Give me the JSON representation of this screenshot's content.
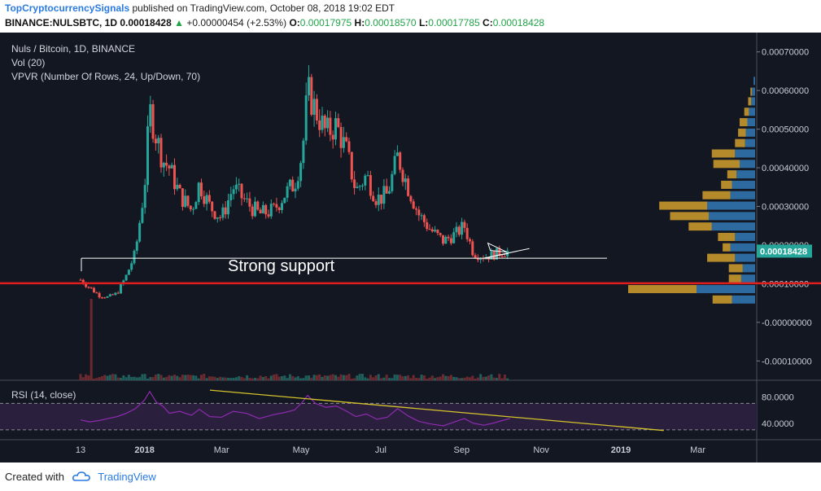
{
  "header": {
    "author": "TopCryptocurrencySignals",
    "published": "published on TradingView.com, October 08, 2018 19:02 EDT",
    "symbol": "BINANCE:NULSBTC, 1D",
    "price": "0.00018428",
    "change": "+0.00000454 (+2.53%)",
    "o_label": "O:",
    "o_value": "0.00017975",
    "h_label": "H:",
    "h_value": "0.00018570",
    "l_label": "L:",
    "l_value": "0.00017785",
    "c_label": "C:",
    "c_value": "0.00018428"
  },
  "legend": {
    "title": "Nuls / Bitcoin, 1D, BINANCE",
    "vol": "Vol (20)",
    "vpvr": "VPVR (Number Of Rows, 24, Up/Down, 70)",
    "rsi": "RSI (14, close)"
  },
  "annotation": "Strong support",
  "footer": {
    "created": "Created with",
    "brand": "TradingView"
  },
  "colors": {
    "background": "#131722",
    "up": "#26a69a",
    "down": "#ef5350",
    "support_line": "#ffffff",
    "red_line": "#e01e1e",
    "rsi_line": "#8e2bb0",
    "rsi_trend": "#d4c22c",
    "vpvr_up": "#2c6aa0",
    "vpvr_down": "#b58a2a",
    "last_price_label": "#26a69a"
  },
  "chart_data": {
    "type": "candlestick",
    "symbol": "NULSBTC",
    "timeframe": "1D",
    "ylim": [
      -0.00015,
      0.00075
    ],
    "x_ticks": [
      "13",
      "2018",
      "Mar",
      "May",
      "Jul",
      "Sep",
      "Nov",
      "2019",
      "Mar"
    ],
    "y_ticks": [
      "0.00070000",
      "0.00060000",
      "0.00050000",
      "0.00040000",
      "0.00030000",
      "0.00020000",
      "0.00010000",
      "-0.00000000",
      "-0.00010000"
    ],
    "last_price": "0.00018428",
    "price_path": {
      "dates": [
        "2017-11-13",
        "2017-11-20",
        "2017-11-27",
        "2017-12-04",
        "2017-12-11",
        "2017-12-18",
        "2017-12-25",
        "2018-01-01",
        "2018-01-05",
        "2018-01-10",
        "2018-01-15",
        "2018-01-20",
        "2018-01-28",
        "2018-02-06",
        "2018-02-12",
        "2018-02-20",
        "2018-03-01",
        "2018-03-10",
        "2018-03-20",
        "2018-03-30",
        "2018-04-10",
        "2018-04-18",
        "2018-04-26",
        "2018-05-02",
        "2018-05-06",
        "2018-05-12",
        "2018-05-20",
        "2018-05-28",
        "2018-06-05",
        "2018-06-12",
        "2018-06-20",
        "2018-06-28",
        "2018-07-06",
        "2018-07-14",
        "2018-07-22",
        "2018-07-30",
        "2018-08-08",
        "2018-08-18",
        "2018-08-28",
        "2018-09-03",
        "2018-09-10",
        "2018-09-18",
        "2018-09-25",
        "2018-10-02",
        "2018-10-08"
      ],
      "close": [
        0.00011,
        9e-05,
        7e-05,
        6.5e-05,
        7.5e-05,
        0.00012,
        0.00018,
        0.00035,
        0.00055,
        0.00048,
        0.00042,
        0.0004,
        0.00033,
        0.00029,
        0.00036,
        0.0003,
        0.00027,
        0.00035,
        0.00031,
        0.00028,
        0.00029,
        0.00033,
        0.00036,
        0.00044,
        0.0006,
        0.00055,
        0.00049,
        0.00051,
        0.00044,
        0.00034,
        0.00038,
        0.00032,
        0.00033,
        0.00043,
        0.00035,
        0.00028,
        0.00024,
        0.00021,
        0.00023,
        0.00025,
        0.00018,
        0.00017,
        0.000175,
        0.000182,
        0.00018428
      ]
    },
    "vpvr": {
      "price_levels": [
        0.000625,
        0.000597,
        0.000572,
        0.000545,
        0.000518,
        0.000491,
        0.000464,
        0.000437,
        0.00041,
        0.000383,
        0.000356,
        0.000329,
        0.000302,
        0.000275,
        0.000248,
        0.000221,
        0.000194,
        0.000167,
        0.00014,
        0.000113,
        8.6e-05,
        5.9e-05
      ],
      "up_volume": [
        0.2,
        0.4,
        0.5,
        0.8,
        1.0,
        1.2,
        1.3,
        2.6,
        2.0,
        2.4,
        3.0,
        3.2,
        6.2,
        6.0,
        5.6,
        2.6,
        3.2,
        2.6,
        1.6,
        1.8,
        9.5,
        3.0
      ],
      "down_volume": [
        0.0,
        0.2,
        0.4,
        0.6,
        1.0,
        1.0,
        1.3,
        3.0,
        3.4,
        1.2,
        1.4,
        3.6,
        6.2,
        5.0,
        3.0,
        2.2,
        1.0,
        3.6,
        1.8,
        1.6,
        9.5,
        2.5
      ]
    },
    "support_level": 0.000166,
    "red_level": 0.000101,
    "rsi": {
      "ylim": [
        20,
        100
      ],
      "y_ticks": [
        "80.0000",
        "40.0000"
      ],
      "upper_band": 70,
      "lower_band": 30,
      "values": [
        45,
        42,
        44,
        47,
        50,
        55,
        62,
        75,
        88,
        72,
        66,
        55,
        58,
        52,
        61,
        50,
        49,
        58,
        55,
        47,
        53,
        56,
        60,
        72,
        82,
        70,
        64,
        66,
        58,
        50,
        54,
        46,
        49,
        62,
        51,
        43,
        39,
        36,
        43,
        47,
        40,
        37,
        40,
        44,
        47
      ],
      "trendline": [
        [
          0.0,
          90
        ],
        [
          1.1,
          29
        ]
      ]
    }
  }
}
